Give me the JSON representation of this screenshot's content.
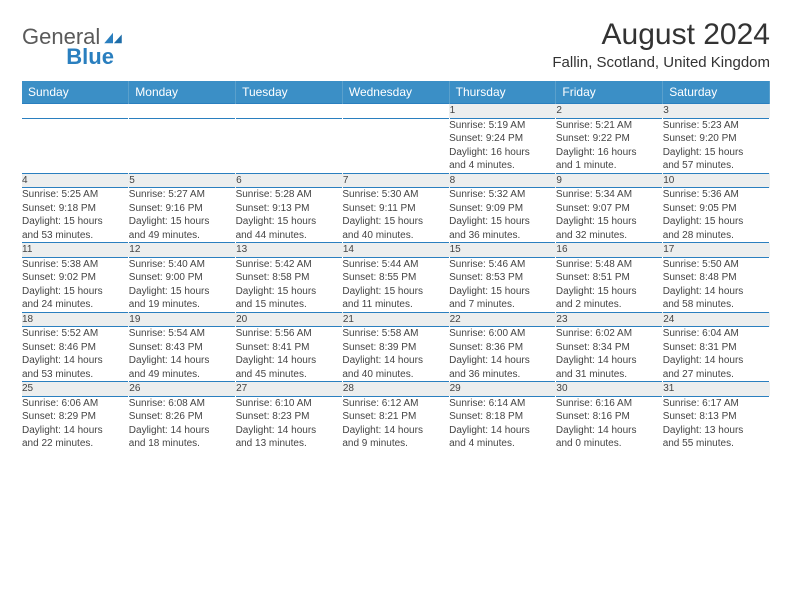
{
  "brand": {
    "part1": "General",
    "part2": "Blue"
  },
  "title": "August 2024",
  "location": "Fallin, Scotland, United Kingdom",
  "colors": {
    "header_bg": "#3b8fc6",
    "header_text": "#ffffff",
    "row_border": "#2a7fbf",
    "daynum_bg": "#eceeee",
    "brand_gray": "#5a5a5a",
    "brand_blue": "#2a7fbf"
  },
  "calendar": {
    "type": "table",
    "day_headers": [
      "Sunday",
      "Monday",
      "Tuesday",
      "Wednesday",
      "Thursday",
      "Friday",
      "Saturday"
    ],
    "weeks": [
      [
        null,
        null,
        null,
        null,
        {
          "n": "1",
          "sr": "Sunrise: 5:19 AM",
          "ss": "Sunset: 9:24 PM",
          "dl1": "Daylight: 16 hours",
          "dl2": "and 4 minutes."
        },
        {
          "n": "2",
          "sr": "Sunrise: 5:21 AM",
          "ss": "Sunset: 9:22 PM",
          "dl1": "Daylight: 16 hours",
          "dl2": "and 1 minute."
        },
        {
          "n": "3",
          "sr": "Sunrise: 5:23 AM",
          "ss": "Sunset: 9:20 PM",
          "dl1": "Daylight: 15 hours",
          "dl2": "and 57 minutes."
        }
      ],
      [
        {
          "n": "4",
          "sr": "Sunrise: 5:25 AM",
          "ss": "Sunset: 9:18 PM",
          "dl1": "Daylight: 15 hours",
          "dl2": "and 53 minutes."
        },
        {
          "n": "5",
          "sr": "Sunrise: 5:27 AM",
          "ss": "Sunset: 9:16 PM",
          "dl1": "Daylight: 15 hours",
          "dl2": "and 49 minutes."
        },
        {
          "n": "6",
          "sr": "Sunrise: 5:28 AM",
          "ss": "Sunset: 9:13 PM",
          "dl1": "Daylight: 15 hours",
          "dl2": "and 44 minutes."
        },
        {
          "n": "7",
          "sr": "Sunrise: 5:30 AM",
          "ss": "Sunset: 9:11 PM",
          "dl1": "Daylight: 15 hours",
          "dl2": "and 40 minutes."
        },
        {
          "n": "8",
          "sr": "Sunrise: 5:32 AM",
          "ss": "Sunset: 9:09 PM",
          "dl1": "Daylight: 15 hours",
          "dl2": "and 36 minutes."
        },
        {
          "n": "9",
          "sr": "Sunrise: 5:34 AM",
          "ss": "Sunset: 9:07 PM",
          "dl1": "Daylight: 15 hours",
          "dl2": "and 32 minutes."
        },
        {
          "n": "10",
          "sr": "Sunrise: 5:36 AM",
          "ss": "Sunset: 9:05 PM",
          "dl1": "Daylight: 15 hours",
          "dl2": "and 28 minutes."
        }
      ],
      [
        {
          "n": "11",
          "sr": "Sunrise: 5:38 AM",
          "ss": "Sunset: 9:02 PM",
          "dl1": "Daylight: 15 hours",
          "dl2": "and 24 minutes."
        },
        {
          "n": "12",
          "sr": "Sunrise: 5:40 AM",
          "ss": "Sunset: 9:00 PM",
          "dl1": "Daylight: 15 hours",
          "dl2": "and 19 minutes."
        },
        {
          "n": "13",
          "sr": "Sunrise: 5:42 AM",
          "ss": "Sunset: 8:58 PM",
          "dl1": "Daylight: 15 hours",
          "dl2": "and 15 minutes."
        },
        {
          "n": "14",
          "sr": "Sunrise: 5:44 AM",
          "ss": "Sunset: 8:55 PM",
          "dl1": "Daylight: 15 hours",
          "dl2": "and 11 minutes."
        },
        {
          "n": "15",
          "sr": "Sunrise: 5:46 AM",
          "ss": "Sunset: 8:53 PM",
          "dl1": "Daylight: 15 hours",
          "dl2": "and 7 minutes."
        },
        {
          "n": "16",
          "sr": "Sunrise: 5:48 AM",
          "ss": "Sunset: 8:51 PM",
          "dl1": "Daylight: 15 hours",
          "dl2": "and 2 minutes."
        },
        {
          "n": "17",
          "sr": "Sunrise: 5:50 AM",
          "ss": "Sunset: 8:48 PM",
          "dl1": "Daylight: 14 hours",
          "dl2": "and 58 minutes."
        }
      ],
      [
        {
          "n": "18",
          "sr": "Sunrise: 5:52 AM",
          "ss": "Sunset: 8:46 PM",
          "dl1": "Daylight: 14 hours",
          "dl2": "and 53 minutes."
        },
        {
          "n": "19",
          "sr": "Sunrise: 5:54 AM",
          "ss": "Sunset: 8:43 PM",
          "dl1": "Daylight: 14 hours",
          "dl2": "and 49 minutes."
        },
        {
          "n": "20",
          "sr": "Sunrise: 5:56 AM",
          "ss": "Sunset: 8:41 PM",
          "dl1": "Daylight: 14 hours",
          "dl2": "and 45 minutes."
        },
        {
          "n": "21",
          "sr": "Sunrise: 5:58 AM",
          "ss": "Sunset: 8:39 PM",
          "dl1": "Daylight: 14 hours",
          "dl2": "and 40 minutes."
        },
        {
          "n": "22",
          "sr": "Sunrise: 6:00 AM",
          "ss": "Sunset: 8:36 PM",
          "dl1": "Daylight: 14 hours",
          "dl2": "and 36 minutes."
        },
        {
          "n": "23",
          "sr": "Sunrise: 6:02 AM",
          "ss": "Sunset: 8:34 PM",
          "dl1": "Daylight: 14 hours",
          "dl2": "and 31 minutes."
        },
        {
          "n": "24",
          "sr": "Sunrise: 6:04 AM",
          "ss": "Sunset: 8:31 PM",
          "dl1": "Daylight: 14 hours",
          "dl2": "and 27 minutes."
        }
      ],
      [
        {
          "n": "25",
          "sr": "Sunrise: 6:06 AM",
          "ss": "Sunset: 8:29 PM",
          "dl1": "Daylight: 14 hours",
          "dl2": "and 22 minutes."
        },
        {
          "n": "26",
          "sr": "Sunrise: 6:08 AM",
          "ss": "Sunset: 8:26 PM",
          "dl1": "Daylight: 14 hours",
          "dl2": "and 18 minutes."
        },
        {
          "n": "27",
          "sr": "Sunrise: 6:10 AM",
          "ss": "Sunset: 8:23 PM",
          "dl1": "Daylight: 14 hours",
          "dl2": "and 13 minutes."
        },
        {
          "n": "28",
          "sr": "Sunrise: 6:12 AM",
          "ss": "Sunset: 8:21 PM",
          "dl1": "Daylight: 14 hours",
          "dl2": "and 9 minutes."
        },
        {
          "n": "29",
          "sr": "Sunrise: 6:14 AM",
          "ss": "Sunset: 8:18 PM",
          "dl1": "Daylight: 14 hours",
          "dl2": "and 4 minutes."
        },
        {
          "n": "30",
          "sr": "Sunrise: 6:16 AM",
          "ss": "Sunset: 8:16 PM",
          "dl1": "Daylight: 14 hours",
          "dl2": "and 0 minutes."
        },
        {
          "n": "31",
          "sr": "Sunrise: 6:17 AM",
          "ss": "Sunset: 8:13 PM",
          "dl1": "Daylight: 13 hours",
          "dl2": "and 55 minutes."
        }
      ]
    ]
  }
}
